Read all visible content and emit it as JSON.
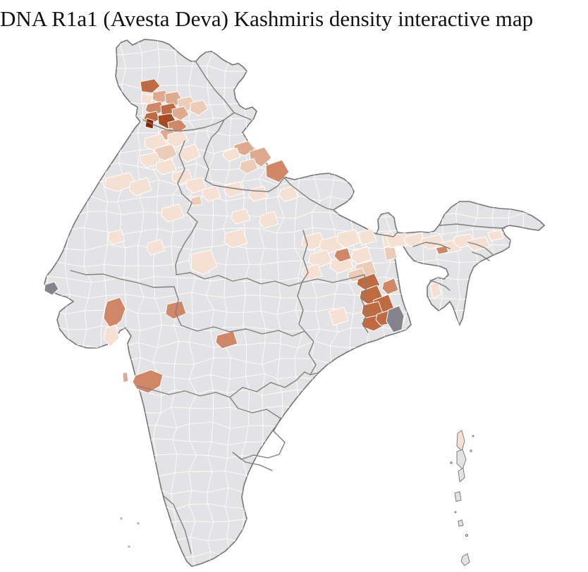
{
  "page": {
    "title": "DNA R1a1 (Avesta Deva) Kashmiris density interactive map"
  },
  "map": {
    "type": "choropleth",
    "region": "India, district level",
    "colors": {
      "background": "#ffffff",
      "land": "#e3e3e5",
      "district_border": "#ffffff",
      "state_border": "#7e7e7e",
      "outline": "#757575",
      "water_gray": "#83838b",
      "density_levels": [
        "#f5e0d3",
        "#edccb7",
        "#dfa98d",
        "#d08766",
        "#c06a42",
        "#a84a22",
        "#8a2503"
      ]
    },
    "clusters": [
      {
        "name": "jammu-kashmir-cluster",
        "intensity": "high"
      },
      {
        "name": "himachal-pradesh-cluster",
        "intensity": "medium"
      },
      {
        "name": "punjab-haryana-scatter",
        "intensity": "low"
      },
      {
        "name": "rajasthan-scatter",
        "intensity": "low"
      },
      {
        "name": "uttar-pradesh-bihar-scatter",
        "intensity": "low"
      },
      {
        "name": "west-bengal-cluster",
        "intensity": "high"
      },
      {
        "name": "assam-valley-scatter",
        "intensity": "low"
      },
      {
        "name": "gujarat-madhya-pradesh-maharashtra-spots",
        "intensity": "medium"
      },
      {
        "name": "andaman-north-island",
        "intensity": "low"
      }
    ]
  }
}
